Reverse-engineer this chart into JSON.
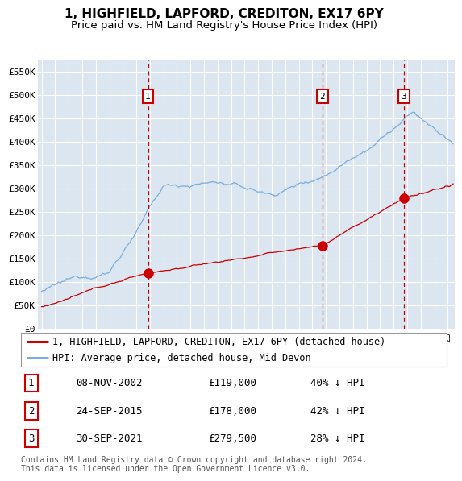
{
  "title": "1, HIGHFIELD, LAPFORD, CREDITON, EX17 6PY",
  "subtitle": "Price paid vs. HM Land Registry's House Price Index (HPI)",
  "ylabel_ticks": [
    "£0",
    "£50K",
    "£100K",
    "£150K",
    "£200K",
    "£250K",
    "£300K",
    "£350K",
    "£400K",
    "£450K",
    "£500K",
    "£550K"
  ],
  "ytick_vals": [
    0,
    50000,
    100000,
    150000,
    200000,
    250000,
    300000,
    350000,
    400000,
    450000,
    500000,
    550000
  ],
  "ylim": [
    0,
    575000
  ],
  "xlim_start": 1994.7,
  "xlim_end": 2025.5,
  "bg_color": "#dce6f1",
  "grid_color": "#ffffff",
  "sale_dates": [
    2002.86,
    2015.73,
    2021.75
  ],
  "sale_prices": [
    119000,
    178000,
    279500
  ],
  "sale_labels": [
    "1",
    "2",
    "3"
  ],
  "sale_date_strings": [
    "08-NOV-2002",
    "24-SEP-2015",
    "30-SEP-2021"
  ],
  "sale_price_strings": [
    "£119,000",
    "£178,000",
    "£279,500"
  ],
  "sale_pct_strings": [
    "40% ↓ HPI",
    "42% ↓ HPI",
    "28% ↓ HPI"
  ],
  "red_line_color": "#cc0000",
  "blue_line_color": "#7aaddb",
  "marker_color": "#cc0000",
  "vline_color": "#cc0000",
  "legend_red_label": "1, HIGHFIELD, LAPFORD, CREDITON, EX17 6PY (detached house)",
  "legend_blue_label": "HPI: Average price, detached house, Mid Devon",
  "footer_text": "Contains HM Land Registry data © Crown copyright and database right 2024.\nThis data is licensed under the Open Government Licence v3.0.",
  "title_fontsize": 11,
  "subtitle_fontsize": 9.5,
  "tick_fontsize": 8,
  "legend_fontsize": 8.5,
  "footer_fontsize": 7
}
